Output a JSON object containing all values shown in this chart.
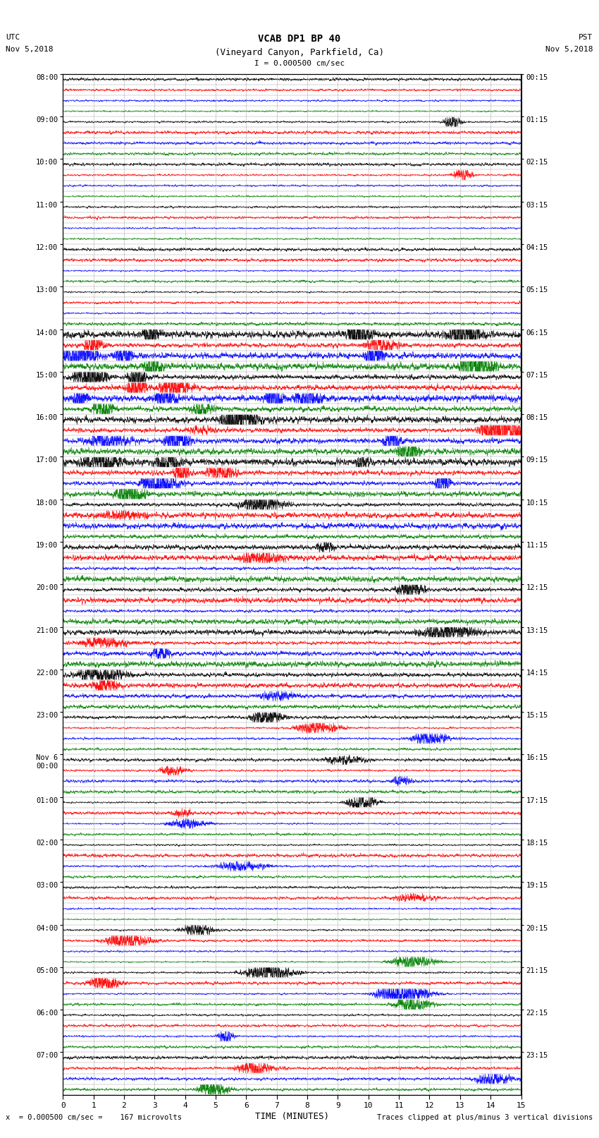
{
  "title_line1": "VCAB DP1 BP 40",
  "title_line2": "(Vineyard Canyon, Parkfield, Ca)",
  "scale_text": "I = 0.000500 cm/sec",
  "left_label_top": "UTC",
  "left_label_date": "Nov 5,2018",
  "right_label_top": "PST",
  "right_label_date": "Nov 5,2018",
  "bottom_label": "TIME (MINUTES)",
  "bottom_note_left": "x  = 0.000500 cm/sec =    167 microvolts",
  "bottom_note_right": "Traces clipped at plus/minus 3 vertical divisions",
  "xlabel_ticks": [
    0,
    1,
    2,
    3,
    4,
    5,
    6,
    7,
    8,
    9,
    10,
    11,
    12,
    13,
    14,
    15
  ],
  "left_times_labeled": [
    "08:00",
    "09:00",
    "10:00",
    "11:00",
    "12:00",
    "13:00",
    "14:00",
    "15:00",
    "16:00",
    "17:00",
    "18:00",
    "19:00",
    "20:00",
    "21:00",
    "22:00",
    "23:00",
    "Nov 6\n00:00",
    "01:00",
    "02:00",
    "03:00",
    "04:00",
    "05:00",
    "06:00",
    "07:00"
  ],
  "right_times_labeled": [
    "00:15",
    "01:15",
    "02:15",
    "03:15",
    "04:15",
    "05:15",
    "06:15",
    "07:15",
    "08:15",
    "09:15",
    "10:15",
    "11:15",
    "12:15",
    "13:15",
    "14:15",
    "15:15",
    "16:15",
    "17:15",
    "18:15",
    "19:15",
    "20:15",
    "21:15",
    "22:15",
    "23:15"
  ],
  "trace_colors": [
    "black",
    "red",
    "blue",
    "green"
  ],
  "background_color": "white",
  "fig_width": 8.5,
  "fig_height": 16.13,
  "dpi": 100,
  "n_hours": 24,
  "traces_per_hour": 4,
  "n_samples": 3600,
  "xlim": [
    0,
    15
  ],
  "clip_level": 0.45,
  "noise_base": 0.04,
  "grid_color": "#888888",
  "grid_alpha": 0.5,
  "grid_lw": 0.5
}
